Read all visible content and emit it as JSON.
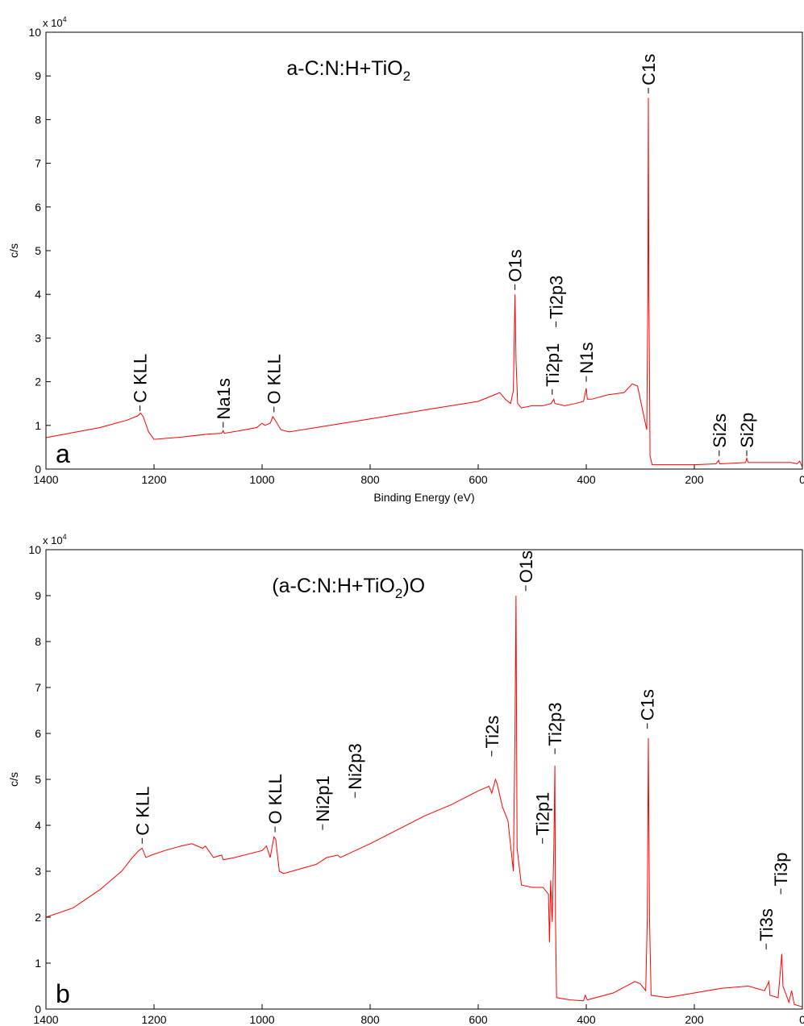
{
  "chart_data": [
    {
      "type": "line",
      "title": [
        "a-C:N:H+TiO",
        "2"
      ],
      "panel_label": "a",
      "xlabel": "Binding Energy (eV)",
      "ylabel": "c/s",
      "y_multiplier": {
        "base": "x 10",
        "exponent": "4"
      },
      "color": "#ff0000",
      "xlim": [
        1400,
        0
      ],
      "xticks": [
        1400,
        1200,
        1000,
        800,
        600,
        400,
        200,
        0
      ],
      "ylim": [
        0,
        10
      ],
      "yticks": [
        0,
        1,
        2,
        3,
        4,
        5,
        6,
        7,
        8,
        9,
        10
      ],
      "x": [
        1400,
        1300,
        1250,
        1230,
        1225,
        1220,
        1210,
        1200,
        1150,
        1100,
        1075,
        1072,
        1070,
        1040,
        1010,
        1000,
        995,
        985,
        980,
        975,
        965,
        950,
        900,
        850,
        800,
        750,
        700,
        650,
        600,
        570,
        560,
        550,
        540,
        535,
        532,
        530,
        527,
        520,
        500,
        480,
        465,
        460,
        458,
        440,
        420,
        405,
        400,
        398,
        390,
        360,
        330,
        315,
        305,
        295,
        288,
        286,
        285,
        284,
        282,
        278,
        250,
        200,
        160,
        155,
        153,
        105,
        103,
        100,
        50,
        20,
        10,
        5,
        0
      ],
      "values": [
        0.72,
        0.95,
        1.12,
        1.22,
        1.28,
        1.2,
        0.85,
        0.68,
        0.73,
        0.8,
        0.82,
        0.88,
        0.82,
        0.88,
        0.95,
        1.05,
        1.0,
        1.05,
        1.2,
        1.1,
        0.9,
        0.85,
        0.95,
        1.05,
        1.15,
        1.25,
        1.35,
        1.45,
        1.55,
        1.7,
        1.75,
        1.6,
        1.5,
        1.8,
        4.0,
        2.5,
        1.5,
        1.4,
        1.45,
        1.45,
        1.5,
        1.6,
        1.5,
        1.45,
        1.5,
        1.55,
        1.85,
        1.6,
        1.6,
        1.7,
        1.75,
        1.95,
        1.9,
        1.3,
        0.9,
        4.0,
        8.5,
        4.0,
        0.3,
        0.1,
        0.1,
        0.1,
        0.12,
        0.2,
        0.12,
        0.15,
        0.25,
        0.15,
        0.15,
        0.15,
        0.12,
        0.18,
        0.05
      ],
      "annotations": [
        {
          "text": "C KLL",
          "x": 1226,
          "y": 1.33
        },
        {
          "text": "Na1s",
          "x": 1072,
          "y": 0.95
        },
        {
          "text": "O KLL",
          "x": 978,
          "y": 1.3
        },
        {
          "text": "O1s",
          "x": 532,
          "y": 4.1
        },
        {
          "text": "Ti2p1",
          "x": 463,
          "y": 1.7
        },
        {
          "text": "Ti2p3",
          "x": 456,
          "y": 3.25
        },
        {
          "text": "N1s",
          "x": 400,
          "y": 2.0
        },
        {
          "text": "C1s",
          "x": 285,
          "y": 8.6
        },
        {
          "text": "Si2s",
          "x": 154,
          "y": 0.3
        },
        {
          "text": "Si2p",
          "x": 103,
          "y": 0.3
        }
      ]
    },
    {
      "type": "line",
      "title": [
        "(a-C:N:H+TiO",
        "2",
        ")O"
      ],
      "panel_label": "b",
      "xlabel": "Binding Energy (eV)",
      "ylabel": "c/s",
      "y_multiplier": {
        "base": "x 10",
        "exponent": "4"
      },
      "color": "#ff0000",
      "xlim": [
        1400,
        0
      ],
      "xticks": [
        1400,
        1200,
        1000,
        800,
        600,
        400,
        200,
        0
      ],
      "ylim": [
        0,
        10
      ],
      "yticks": [
        0,
        1,
        2,
        3,
        4,
        5,
        6,
        7,
        8,
        9,
        10
      ],
      "x": [
        1400,
        1350,
        1300,
        1260,
        1240,
        1228,
        1222,
        1215,
        1205,
        1180,
        1150,
        1130,
        1110,
        1105,
        1090,
        1075,
        1072,
        1050,
        1000,
        992,
        985,
        978,
        975,
        968,
        960,
        900,
        880,
        860,
        855,
        800,
        700,
        650,
        600,
        580,
        575,
        568,
        565,
        555,
        545,
        535,
        532,
        530,
        528,
        520,
        500,
        480,
        470,
        468,
        466,
        463,
        460,
        458,
        457,
        455,
        430,
        405,
        402,
        398,
        350,
        310,
        300,
        290,
        287,
        285,
        283,
        280,
        250,
        200,
        150,
        100,
        70,
        62,
        60,
        45,
        38,
        36,
        25,
        20,
        15,
        0
      ],
      "values": [
        2.0,
        2.2,
        2.6,
        3.0,
        3.3,
        3.45,
        3.5,
        3.3,
        3.35,
        3.45,
        3.55,
        3.6,
        3.5,
        3.55,
        3.3,
        3.35,
        3.25,
        3.3,
        3.45,
        3.55,
        3.3,
        3.75,
        3.7,
        3.0,
        2.95,
        3.15,
        3.3,
        3.35,
        3.3,
        3.6,
        4.2,
        4.45,
        4.75,
        4.85,
        4.7,
        5.0,
        4.9,
        4.4,
        4.1,
        3.0,
        6.0,
        9.0,
        3.5,
        2.7,
        2.65,
        2.65,
        2.5,
        1.45,
        2.8,
        1.9,
        3.5,
        5.3,
        2.0,
        0.25,
        0.2,
        0.18,
        0.3,
        0.2,
        0.35,
        0.6,
        0.55,
        0.4,
        2.0,
        5.9,
        2.0,
        0.3,
        0.25,
        0.35,
        0.45,
        0.5,
        0.4,
        0.6,
        0.3,
        0.25,
        1.2,
        0.5,
        0.15,
        0.4,
        0.1,
        0.05
      ],
      "annotations": [
        {
          "text": "C KLL",
          "x": 1222,
          "y": 3.6
        },
        {
          "text": "O KLL",
          "x": 976,
          "y": 3.85
        },
        {
          "text": "Ni2p1",
          "x": 888,
          "y": 3.9
        },
        {
          "text": "Ni2p3",
          "x": 828,
          "y": 4.6
        },
        {
          "text": "Ti2s",
          "x": 575,
          "y": 5.5
        },
        {
          "text": "O1s",
          "x": 512,
          "y": 9.1
        },
        {
          "text": "Ti2p1",
          "x": 481,
          "y": 3.6
        },
        {
          "text": "Ti2p3",
          "x": 458,
          "y": 5.55
        },
        {
          "text": "C1s",
          "x": 287,
          "y": 6.1
        },
        {
          "text": "Ti3s",
          "x": 67,
          "y": 1.3
        },
        {
          "text": "Ti3p",
          "x": 40,
          "y": 2.5
        }
      ]
    }
  ]
}
